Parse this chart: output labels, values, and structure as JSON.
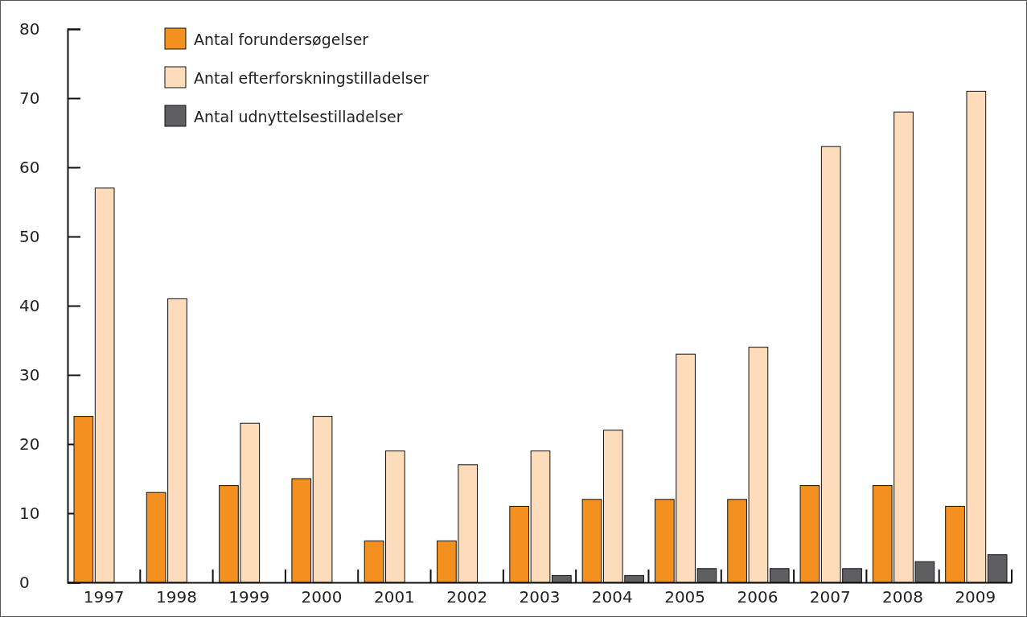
{
  "chart_data": {
    "type": "bar",
    "categories": [
      "1997",
      "1998",
      "1999",
      "2000",
      "2001",
      "2002",
      "2003",
      "2004",
      "2005",
      "2006",
      "2007",
      "2008",
      "2009"
    ],
    "series": [
      {
        "name": "Antal forundersøgelser",
        "color": "#f39020",
        "values": [
          24,
          13,
          14,
          15,
          6,
          6,
          11,
          12,
          12,
          12,
          14,
          14,
          11
        ]
      },
      {
        "name": "Antal efterforskningstilladelser",
        "color": "#fddcbb",
        "values": [
          57,
          41,
          23,
          24,
          19,
          17,
          19,
          22,
          33,
          34,
          63,
          68,
          71
        ]
      },
      {
        "name": "Antal udnyttelsestilladelser",
        "color": "#5f5f62",
        "values": [
          0,
          0,
          0,
          0,
          0,
          0,
          1,
          1,
          2,
          2,
          2,
          3,
          4
        ]
      }
    ],
    "ylim": [
      0,
      80
    ],
    "yticks": [
      0,
      10,
      20,
      30,
      40,
      50,
      60,
      70,
      80
    ],
    "grid": false,
    "legend": "top left"
  }
}
